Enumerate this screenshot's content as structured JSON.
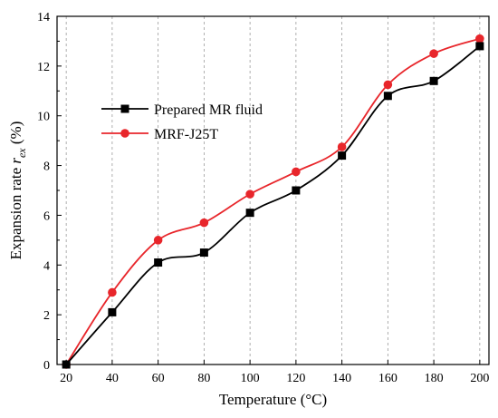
{
  "chart_data": {
    "type": "line",
    "x": [
      20,
      40,
      60,
      80,
      100,
      120,
      140,
      160,
      180,
      200
    ],
    "series": [
      {
        "name": "Prepared MR fluid",
        "color": "#000000",
        "marker": "square",
        "values": [
          0,
          2.1,
          4.1,
          4.5,
          6.1,
          7.0,
          8.4,
          10.8,
          11.4,
          12.8
        ]
      },
      {
        "name": "MRF-J25T",
        "color": "#e8262b",
        "marker": "circle",
        "values": [
          0,
          2.9,
          5.0,
          5.7,
          6.85,
          7.75,
          8.75,
          11.25,
          12.5,
          13.1
        ]
      }
    ],
    "xlabel": "Temperature (°C)",
    "ylabel": {
      "prefix": "Expansion rate ",
      "var": "r",
      "sub": "ex",
      "suffix": " (%)"
    },
    "xticks": [
      20,
      40,
      60,
      80,
      100,
      120,
      140,
      160,
      180,
      200
    ],
    "yticks": [
      0,
      2,
      4,
      6,
      8,
      10,
      12,
      14
    ],
    "xlim": [
      16,
      204
    ],
    "ylim": [
      0,
      14
    ],
    "grid": "vertical-dashed",
    "legend": "upper-left"
  }
}
